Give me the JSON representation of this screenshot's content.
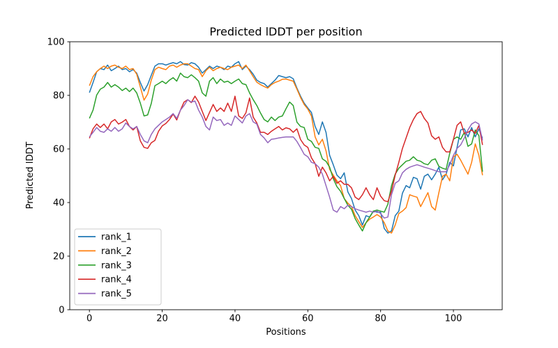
{
  "title": "Predicted lDDT per position",
  "chart_data": {
    "type": "line",
    "title": "Predicted lDDT per position",
    "xlabel": "Positions",
    "ylabel": "Predicted lDDT",
    "xlim": [
      -5.4,
      113.4
    ],
    "ylim": [
      0,
      100
    ],
    "x_ticks": [
      0,
      20,
      40,
      60,
      80,
      100
    ],
    "y_ticks": [
      0,
      20,
      40,
      60,
      80,
      100
    ],
    "grid": false,
    "legend_position": "lower left",
    "legend_entries": [
      "rank_1",
      "rank_2",
      "rank_3",
      "rank_4",
      "rank_5"
    ],
    "x": [
      0,
      1,
      2,
      3,
      4,
      5,
      6,
      7,
      8,
      9,
      10,
      11,
      12,
      13,
      14,
      15,
      16,
      17,
      18,
      19,
      20,
      21,
      22,
      23,
      24,
      25,
      26,
      27,
      28,
      29,
      30,
      31,
      32,
      33,
      34,
      35,
      36,
      37,
      38,
      39,
      40,
      41,
      42,
      43,
      44,
      45,
      46,
      47,
      48,
      49,
      50,
      51,
      52,
      53,
      54,
      55,
      56,
      57,
      58,
      59,
      60,
      61,
      62,
      63,
      64,
      65,
      66,
      67,
      68,
      69,
      70,
      71,
      72,
      73,
      74,
      75,
      76,
      77,
      78,
      79,
      80,
      81,
      82,
      83,
      84,
      85,
      86,
      87,
      88,
      89,
      90,
      91,
      92,
      93,
      94,
      95,
      96,
      97,
      98,
      99,
      100,
      101,
      102,
      103,
      104,
      105,
      106,
      107,
      108
    ],
    "series": [
      {
        "name": "rank_1",
        "color": "#1f77b4",
        "values": [
          81.0,
          84.8,
          88.8,
          90.0,
          89.6,
          91.3,
          89.2,
          90.0,
          90.9,
          89.6,
          90.0,
          88.8,
          89.6,
          88.3,
          84.8,
          81.6,
          84.0,
          87.5,
          90.9,
          91.8,
          91.8,
          91.3,
          91.8,
          92.2,
          91.8,
          92.6,
          91.5,
          91.3,
          92.2,
          91.8,
          90.5,
          88.3,
          89.6,
          90.9,
          90.0,
          90.9,
          90.5,
          89.6,
          90.9,
          90.5,
          91.8,
          92.6,
          89.6,
          90.9,
          89.6,
          87.9,
          85.7,
          84.8,
          84.4,
          83.1,
          84.4,
          85.7,
          87.4,
          87.0,
          86.6,
          87.0,
          86.2,
          82.7,
          79.7,
          77.1,
          75.3,
          73.6,
          68.4,
          65.4,
          70.1,
          66.2,
          57.6,
          54.1,
          50.2,
          48.9,
          51.1,
          44.0,
          41.5,
          37.2,
          35.1,
          31.6,
          35.1,
          34.6,
          36.8,
          36.4,
          36.4,
          30.3,
          28.6,
          29.4,
          35.1,
          36.8,
          43.5,
          46.3,
          45.5,
          49.4,
          48.9,
          45.0,
          49.8,
          50.6,
          48.5,
          50.6,
          53.2,
          48.5,
          50.6,
          55.0,
          53.7,
          60.6,
          67.1,
          67.5,
          64.5,
          68.0,
          64.5,
          67.5,
          64.0
        ]
      },
      {
        "name": "rank_2",
        "color": "#ff7f0e",
        "values": [
          83.6,
          87.0,
          88.8,
          90.0,
          90.9,
          90.0,
          90.9,
          91.3,
          90.5,
          90.0,
          90.9,
          89.6,
          90.0,
          87.9,
          83.1,
          78.2,
          80.5,
          85.7,
          89.6,
          90.5,
          90.0,
          89.6,
          90.9,
          91.3,
          90.5,
          91.3,
          91.8,
          91.8,
          90.9,
          90.0,
          89.6,
          87.0,
          89.2,
          90.5,
          89.2,
          90.0,
          90.5,
          90.0,
          89.6,
          90.5,
          90.9,
          91.3,
          90.0,
          91.3,
          89.2,
          87.0,
          84.9,
          84.0,
          83.3,
          82.7,
          84.0,
          84.8,
          85.3,
          86.0,
          86.1,
          85.7,
          85.3,
          82.3,
          79.2,
          76.6,
          74.9,
          72.3,
          64.5,
          61.5,
          63.6,
          59.3,
          52.4,
          50.2,
          48.1,
          46.3,
          41.5,
          39.8,
          38.5,
          35.1,
          32.9,
          30.7,
          32.5,
          33.8,
          34.6,
          35.5,
          34.6,
          32.5,
          29.4,
          28.6,
          31.6,
          35.9,
          36.8,
          38.1,
          42.9,
          42.4,
          42.0,
          38.5,
          41.1,
          43.7,
          38.5,
          37.2,
          43.7,
          49.8,
          50.6,
          48.1,
          57.1,
          58.0,
          55.8,
          53.2,
          50.6,
          55.0,
          61.9,
          57.6,
          50.2
        ]
      },
      {
        "name": "rank_3",
        "color": "#2ca02c",
        "values": [
          71.4,
          74.5,
          80.1,
          82.3,
          83.1,
          84.8,
          83.1,
          84.0,
          83.1,
          81.8,
          82.7,
          81.4,
          82.7,
          80.9,
          77.1,
          72.3,
          72.7,
          77.0,
          83.6,
          84.4,
          85.3,
          84.4,
          85.7,
          86.6,
          85.3,
          88.3,
          87.0,
          86.6,
          87.7,
          86.6,
          85.3,
          80.9,
          79.7,
          85.3,
          86.6,
          84.4,
          86.1,
          84.9,
          85.3,
          84.4,
          85.3,
          86.1,
          84.4,
          84.0,
          80.9,
          78.4,
          76.2,
          73.4,
          71.0,
          70.1,
          71.9,
          70.6,
          71.9,
          72.3,
          75.0,
          77.5,
          76.2,
          70.0,
          68.4,
          68.0,
          63.6,
          62.8,
          60.6,
          60.2,
          56.3,
          55.4,
          53.2,
          48.9,
          45.9,
          44.2,
          41.5,
          39.0,
          37.5,
          34.0,
          31.6,
          29.4,
          32.5,
          34.6,
          36.8,
          37.2,
          36.8,
          36.4,
          39.4,
          46.3,
          50.6,
          52.8,
          54.1,
          55.4,
          55.8,
          57.1,
          55.8,
          55.4,
          54.5,
          54.1,
          55.8,
          56.3,
          53.5,
          52.8,
          52.4,
          58.4,
          63.6,
          64.5,
          63.6,
          66.2,
          61.0,
          61.9,
          67.1,
          64.9,
          51.5
        ]
      },
      {
        "name": "rank_4",
        "color": "#d62728",
        "values": [
          64.0,
          67.5,
          69.3,
          68.0,
          69.3,
          67.5,
          70.1,
          71.0,
          69.3,
          70.0,
          71.0,
          68.4,
          67.1,
          68.4,
          63.0,
          60.6,
          60.2,
          62.3,
          63.2,
          66.6,
          68.6,
          69.5,
          71.0,
          73.0,
          70.8,
          74.5,
          77.5,
          78.4,
          77.3,
          79.7,
          77.5,
          74.0,
          70.6,
          73.6,
          76.6,
          74.0,
          75.3,
          74.0,
          77.1,
          74.0,
          79.7,
          72.3,
          71.4,
          73.5,
          79.0,
          71.9,
          69.7,
          66.2,
          66.2,
          65.4,
          66.6,
          67.5,
          68.4,
          67.1,
          67.9,
          67.5,
          66.2,
          67.5,
          63.5,
          61.5,
          60.6,
          56.7,
          54.5,
          49.8,
          53.2,
          51.1,
          48.1,
          49.8,
          47.2,
          48.1,
          46.8,
          46.8,
          45.5,
          42.0,
          41.1,
          42.9,
          45.5,
          42.9,
          41.1,
          45.5,
          42.4,
          40.7,
          40.3,
          44.2,
          50.2,
          55.0,
          60.2,
          64.1,
          68.0,
          71.0,
          73.2,
          74.0,
          71.4,
          69.7,
          64.9,
          63.6,
          64.5,
          60.6,
          58.9,
          58.9,
          63.6,
          68.8,
          70.1,
          65.8,
          66.2,
          67.1,
          65.8,
          68.8,
          61.5
        ]
      },
      {
        "name": "rank_5",
        "color": "#9467bd",
        "values": [
          64.5,
          66.2,
          68.0,
          66.6,
          66.2,
          67.5,
          66.6,
          68.0,
          66.6,
          67.5,
          69.7,
          68.4,
          67.5,
          68.4,
          65.4,
          63.0,
          62.3,
          65.4,
          67.5,
          68.8,
          70.1,
          71.0,
          71.9,
          73.2,
          71.4,
          74.5,
          76.2,
          78.4,
          77.5,
          77.9,
          74.5,
          71.9,
          68.4,
          67.1,
          71.9,
          70.6,
          71.0,
          68.8,
          69.7,
          68.8,
          72.3,
          71.0,
          69.7,
          72.3,
          73.2,
          70.1,
          69.3,
          65.4,
          64.1,
          62.3,
          63.6,
          63.8,
          64.1,
          64.3,
          64.5,
          64.5,
          64.5,
          62.8,
          60.5,
          58.0,
          57.1,
          55.0,
          54.5,
          53.2,
          50.6,
          46.3,
          42.0,
          37.2,
          36.4,
          38.5,
          37.7,
          39.0,
          38.5,
          37.7,
          37.2,
          36.8,
          36.4,
          36.8,
          36.4,
          36.8,
          35.9,
          34.2,
          34.6,
          42.9,
          47.2,
          48.1,
          51.1,
          52.4,
          53.2,
          53.7,
          54.1,
          53.7,
          53.2,
          52.8,
          52.4,
          51.9,
          51.5,
          51.5,
          51.5,
          54.1,
          57.6,
          60.2,
          61.5,
          64.1,
          67.1,
          69.3,
          70.1,
          69.3,
          63.2
        ]
      }
    ]
  }
}
